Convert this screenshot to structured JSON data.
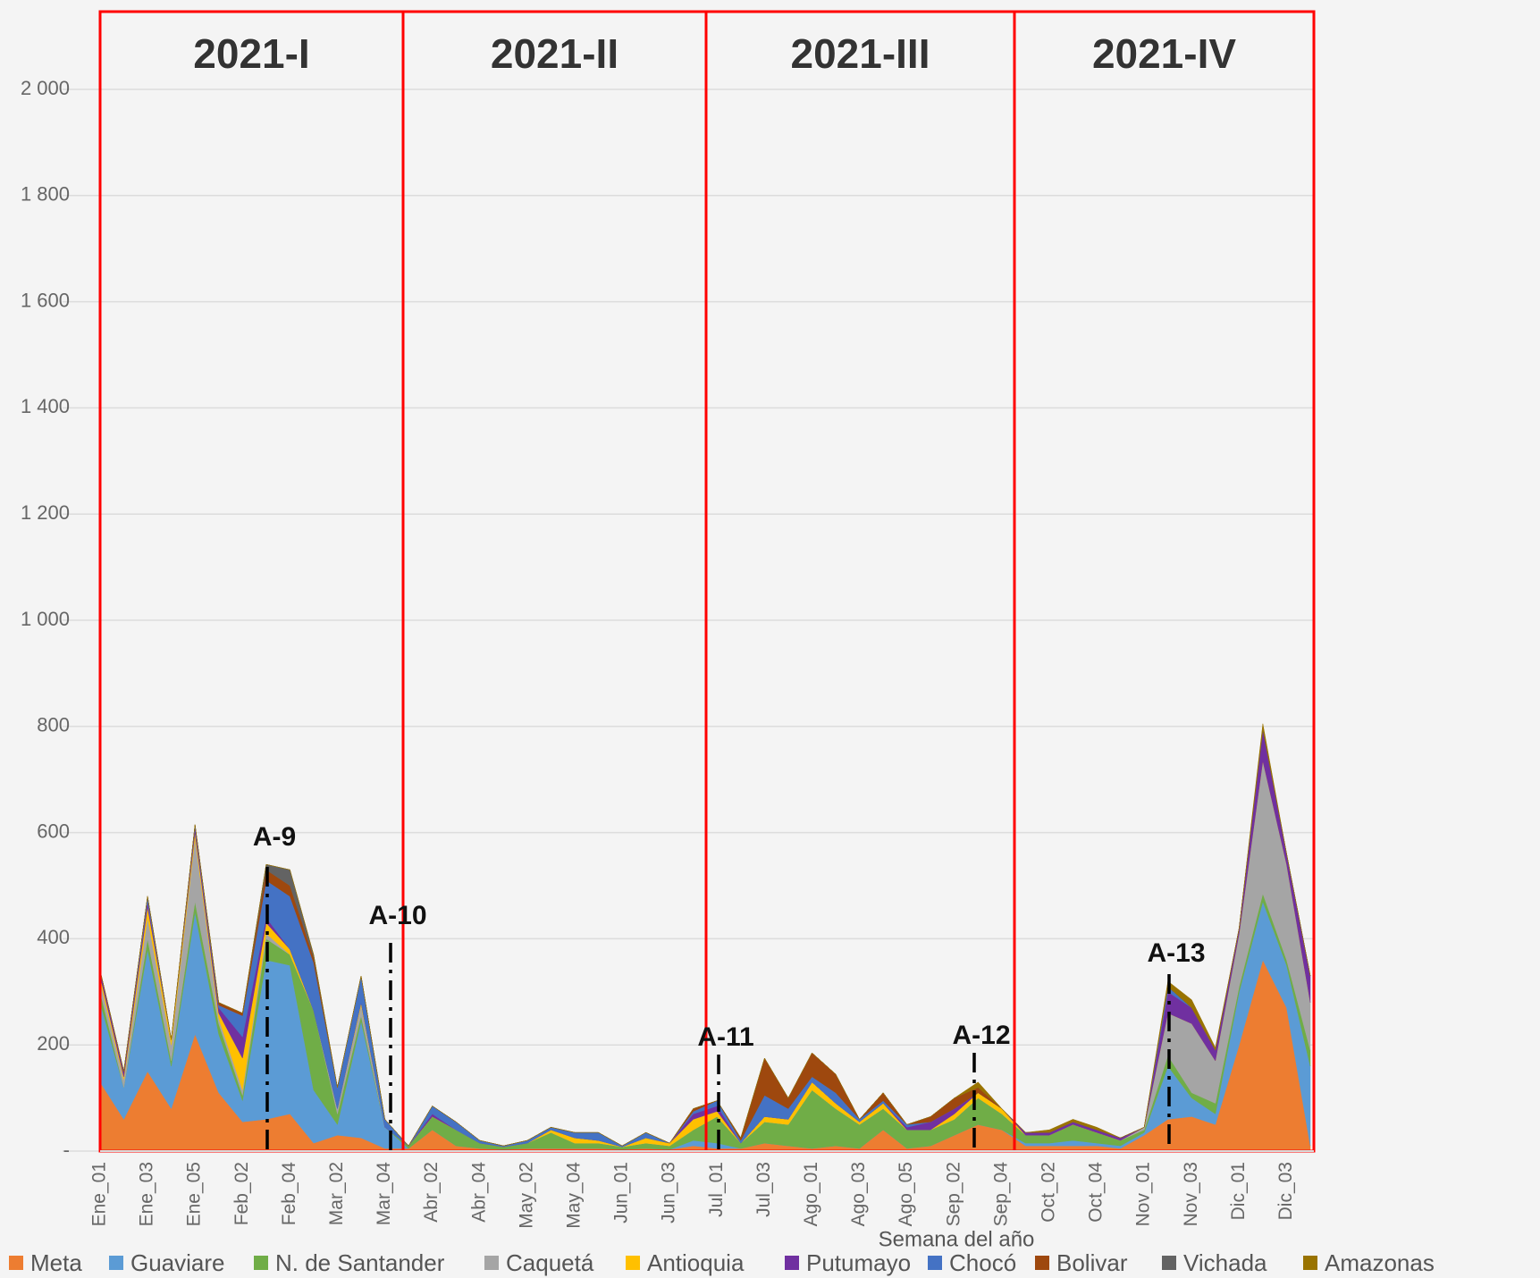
{
  "chart_data": {
    "type": "stacked_area",
    "x_label": "Semana del año",
    "periods": [
      "2021-I",
      "2021-II",
      "2021-III",
      "2021-IV"
    ],
    "annotations": [
      "A-9",
      "A-10",
      "A-11",
      "A-12",
      "A-13"
    ],
    "categories": [
      "Ene_01",
      null,
      "Ene_03",
      null,
      "Ene_05",
      null,
      "Feb_02",
      null,
      "Feb_04",
      null,
      "Mar_02",
      null,
      "Mar_04",
      null,
      "Abr_02",
      null,
      "Abr_04",
      null,
      "May_02",
      null,
      "May_04",
      null,
      "Jun_01",
      null,
      "Jun_03",
      null,
      "Jul_01",
      null,
      "Jul_03",
      null,
      "Ago_01",
      null,
      "Ago_03",
      null,
      "Ago_05",
      null,
      "Sep_02",
      null,
      "Sep_04",
      null,
      "Oct_02",
      null,
      "Oct_04",
      null,
      "Nov_01",
      null,
      "Nov_03",
      null,
      "Dic_01",
      null,
      "Dic_03",
      null
    ],
    "ylim": [
      0,
      2000
    ],
    "yticks": [
      {
        "value": 0,
        "label": "-"
      },
      200,
      400,
      600,
      800,
      {
        "value": 1000,
        "label": "1 000"
      },
      {
        "value": 1200,
        "label": "1 200"
      },
      {
        "value": 1400,
        "label": "1 400"
      },
      {
        "value": 1600,
        "label": "1 600"
      },
      {
        "value": 1800,
        "label": "1 800"
      },
      {
        "value": 2000,
        "label": "2 000"
      }
    ],
    "grid": true,
    "legend": "bottom",
    "series": [
      {
        "name": "Meta",
        "color": "#ed7d31",
        "values": [
          130,
          60,
          150,
          80,
          220,
          110,
          55,
          60,
          70,
          15,
          30,
          25,
          5,
          5,
          40,
          10,
          5,
          3,
          5,
          5,
          5,
          5,
          3,
          5,
          3,
          10,
          5,
          5,
          15,
          10,
          5,
          10,
          5,
          40,
          5,
          10,
          30,
          50,
          40,
          10,
          10,
          10,
          10,
          5,
          30,
          60,
          65,
          50,
          200,
          360,
          270,
          10
        ]
      },
      {
        "name": "Guaviare",
        "color": "#5b9bd5",
        "values": [
          150,
          60,
          230,
          80,
          230,
          110,
          40,
          300,
          280,
          100,
          20,
          220,
          40,
          0,
          0,
          0,
          0,
          0,
          0,
          0,
          0,
          0,
          0,
          0,
          0,
          10,
          10,
          0,
          0,
          0,
          0,
          0,
          0,
          0,
          0,
          0,
          0,
          0,
          0,
          5,
          5,
          10,
          5,
          5,
          5,
          100,
          35,
          20,
          100,
          110,
          80,
          150
        ]
      },
      {
        "name": "N. de Santander",
        "color": "#70ad47",
        "values": [
          20,
          0,
          20,
          10,
          20,
          20,
          10,
          40,
          20,
          150,
          20,
          10,
          0,
          5,
          25,
          30,
          10,
          5,
          10,
          30,
          10,
          10,
          5,
          10,
          7,
          20,
          50,
          10,
          40,
          40,
          110,
          70,
          45,
          40,
          35,
          30,
          30,
          50,
          30,
          15,
          15,
          30,
          20,
          10,
          5,
          20,
          10,
          20,
          10,
          15,
          10,
          30
        ]
      },
      {
        "name": "Caquetá",
        "color": "#a5a5a5",
        "values": [
          20,
          15,
          40,
          30,
          120,
          10,
          10,
          10,
          0,
          0,
          10,
          20,
          0,
          0,
          0,
          0,
          0,
          0,
          0,
          0,
          0,
          0,
          0,
          0,
          0,
          0,
          0,
          0,
          0,
          0,
          0,
          0,
          0,
          0,
          0,
          0,
          0,
          0,
          0,
          0,
          0,
          0,
          0,
          0,
          5,
          80,
          130,
          80,
          100,
          250,
          180,
          90
        ]
      },
      {
        "name": "Antioquia",
        "color": "#ffc000",
        "values": [
          10,
          5,
          20,
          10,
          10,
          10,
          60,
          20,
          10,
          0,
          0,
          5,
          0,
          0,
          0,
          0,
          0,
          0,
          0,
          5,
          10,
          5,
          0,
          10,
          5,
          20,
          10,
          0,
          10,
          10,
          15,
          10,
          5,
          10,
          0,
          0,
          10,
          10,
          10,
          0,
          0,
          0,
          0,
          0,
          0,
          0,
          0,
          0,
          0,
          0,
          0,
          0
        ]
      },
      {
        "name": "Putumayo",
        "color": "#7030a0",
        "values": [
          10,
          10,
          10,
          0,
          10,
          10,
          40,
          10,
          0,
          0,
          0,
          0,
          0,
          0,
          5,
          0,
          0,
          0,
          0,
          0,
          0,
          0,
          0,
          0,
          0,
          10,
          10,
          0,
          0,
          0,
          0,
          0,
          0,
          0,
          5,
          15,
          10,
          0,
          0,
          5,
          5,
          5,
          5,
          5,
          0,
          40,
          30,
          20,
          10,
          60,
          20,
          50
        ]
      },
      {
        "name": "Chocó",
        "color": "#4472c4",
        "values": [
          0,
          0,
          10,
          0,
          5,
          5,
          40,
          70,
          100,
          90,
          40,
          50,
          15,
          0,
          15,
          15,
          5,
          2,
          5,
          5,
          10,
          15,
          2,
          10,
          0,
          5,
          10,
          5,
          40,
          20,
          10,
          20,
          5,
          5,
          5,
          0,
          0,
          0,
          0,
          0,
          0,
          0,
          0,
          0,
          0,
          10,
          0,
          0,
          0,
          0,
          0,
          0
        ]
      },
      {
        "name": "Bolivar",
        "color": "#9e480e",
        "values": [
          0,
          0,
          0,
          0,
          0,
          5,
          5,
          20,
          20,
          10,
          0,
          0,
          0,
          0,
          0,
          0,
          0,
          0,
          0,
          0,
          0,
          0,
          0,
          0,
          0,
          5,
          0,
          5,
          70,
          20,
          45,
          35,
          0,
          15,
          0,
          10,
          20,
          10,
          0,
          0,
          0,
          0,
          0,
          0,
          0,
          0,
          0,
          0,
          0,
          0,
          0,
          0
        ]
      },
      {
        "name": "Vichada",
        "color": "#636363",
        "values": [
          0,
          0,
          0,
          0,
          0,
          0,
          0,
          10,
          30,
          5,
          0,
          0,
          0,
          0,
          0,
          0,
          0,
          0,
          0,
          0,
          0,
          0,
          0,
          0,
          0,
          0,
          0,
          0,
          0,
          0,
          0,
          0,
          0,
          0,
          0,
          0,
          0,
          0,
          0,
          0,
          0,
          0,
          0,
          0,
          0,
          0,
          0,
          0,
          0,
          0,
          0,
          0
        ]
      },
      {
        "name": "Amazonas",
        "color": "#997300",
        "values": [
          0,
          0,
          0,
          0,
          0,
          0,
          0,
          0,
          0,
          0,
          0,
          0,
          0,
          0,
          0,
          0,
          0,
          0,
          0,
          0,
          0,
          0,
          0,
          0,
          0,
          0,
          0,
          0,
          0,
          0,
          0,
          0,
          0,
          0,
          0,
          0,
          0,
          10,
          0,
          0,
          5,
          5,
          5,
          0,
          0,
          10,
          15,
          5,
          0,
          10,
          0,
          0
        ]
      }
    ]
  }
}
